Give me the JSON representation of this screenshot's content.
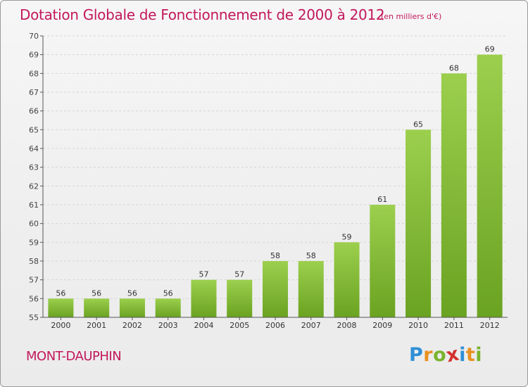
{
  "chart_data": {
    "type": "bar",
    "title": "Dotation Globale de Fonctionnement de 2000 à 2012",
    "subtitle": "(en milliers d'€)",
    "categories": [
      "2000",
      "2001",
      "2002",
      "2003",
      "2004",
      "2005",
      "2006",
      "2007",
      "2008",
      "2009",
      "2010",
      "2011",
      "2012"
    ],
    "values": [
      56,
      56,
      56,
      56,
      57,
      57,
      58,
      58,
      59,
      61,
      65,
      68,
      69
    ],
    "ylim": [
      55,
      70
    ],
    "yticks": [
      55,
      56,
      57,
      58,
      59,
      60,
      61,
      62,
      63,
      64,
      65,
      66,
      67,
      68,
      69,
      70
    ],
    "xlabel": "",
    "ylabel": "",
    "grid": true,
    "bar_color_light": "#9ccf4e",
    "bar_color_dark": "#6aa321"
  },
  "footer": {
    "town": "MONT-DAUPHIN",
    "logo_letters": [
      {
        "char": "P",
        "color": "#2f8fd6"
      },
      {
        "char": "r",
        "color": "#e8911f"
      },
      {
        "char": "o",
        "color": "#7ab32e"
      },
      {
        "char": "x",
        "color": "#d2312f"
      },
      {
        "char": "i",
        "color": "#2f8fd6"
      },
      {
        "char": "t",
        "color": "#e8911f"
      },
      {
        "char": "i",
        "color": "#7ab32e"
      }
    ]
  },
  "colors": {
    "accent": "#c2185b",
    "axis": "#555555",
    "grid": "#d5d5d5"
  }
}
